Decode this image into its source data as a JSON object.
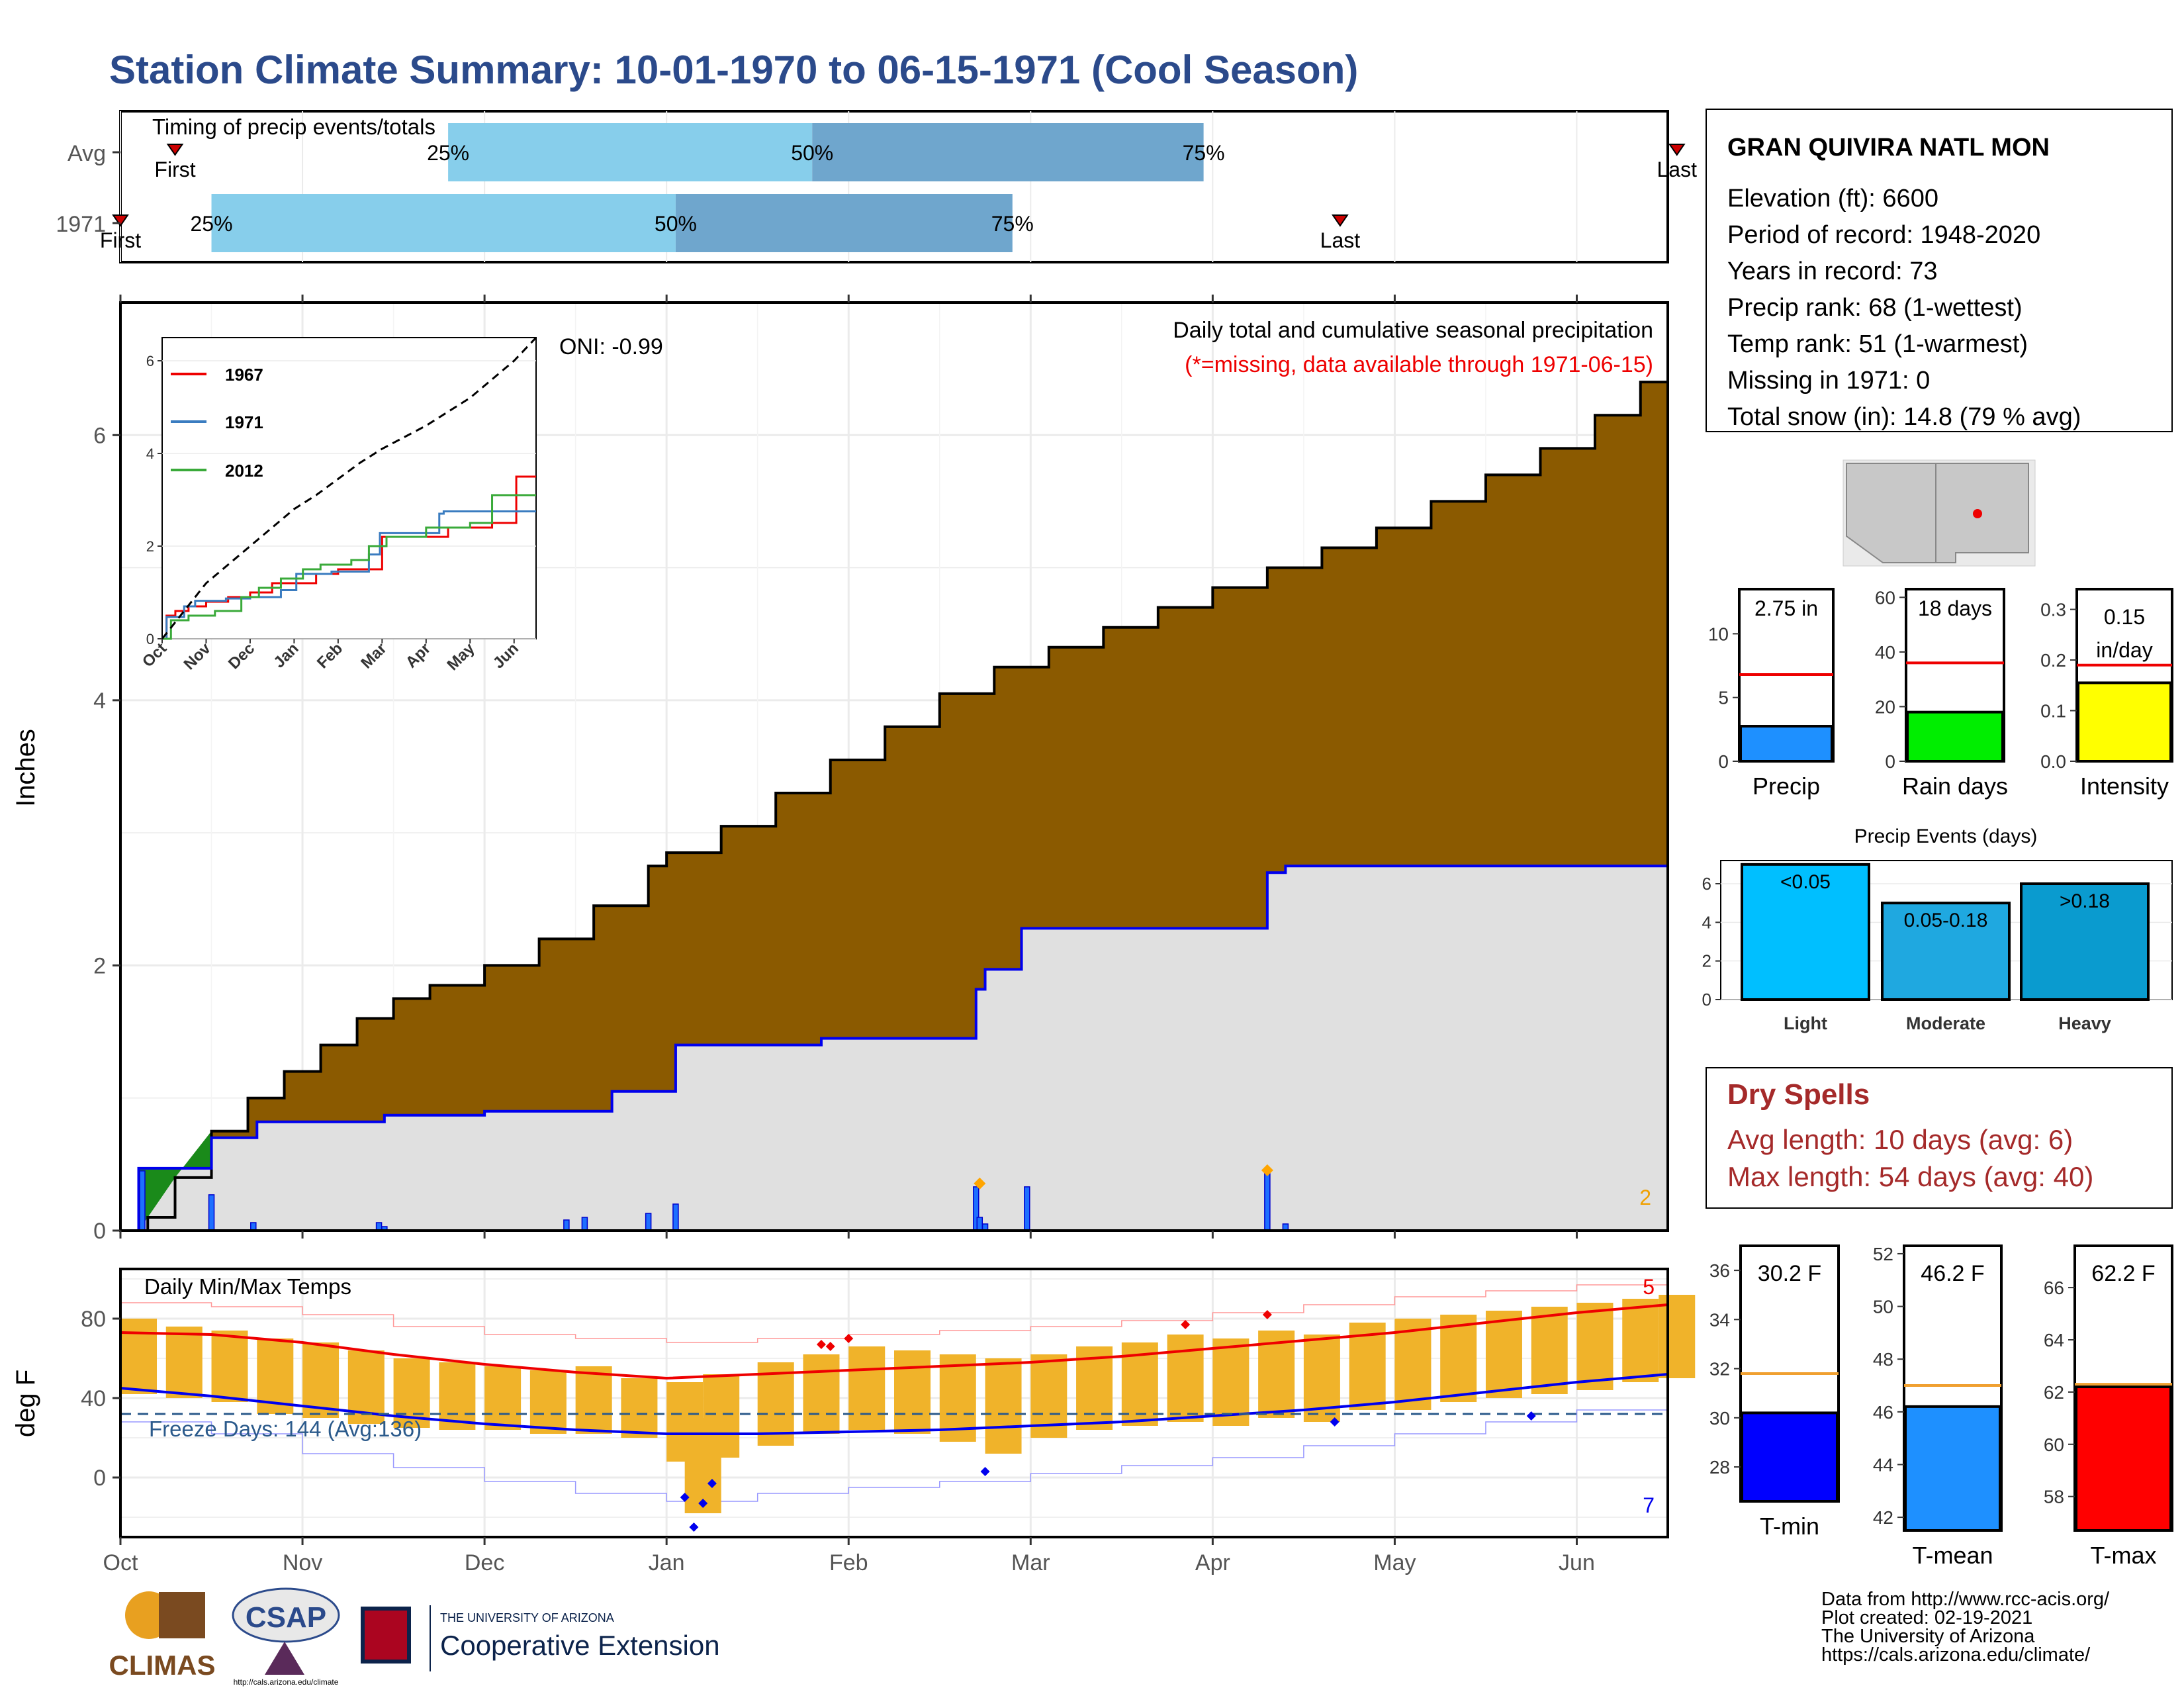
{
  "title": "Station Climate Summary: 10-01-1970 to 06-15-1971 (Cool Season)",
  "colors": {
    "title": "#2B4A8B",
    "precip_fill": "#8B5A00",
    "obs_line": "#0000EE",
    "obs_fill": "#E0E0E0",
    "early_fill": "#1A8A1A",
    "q_light": "#87CEEB",
    "q_dark": "#6FA6CD",
    "marker": "#CC0000",
    "bar_orange": "#F0B32A",
    "tmax_line": "#EE0000",
    "tmin_line": "#0000EE",
    "dry_spell_red": "#A52A2A"
  },
  "timing_panel": {
    "title": "Timing of precip events/totals",
    "rows": [
      {
        "label": "Avg",
        "first_mo": 0.3,
        "last_mo": 8.55,
        "q25": 1.8,
        "q50": 3.8,
        "q75": 5.95,
        "first_label": "First",
        "last_label": "Last"
      },
      {
        "label": "1971",
        "first_mo": 0.0,
        "last_mo": 6.7,
        "q25": 0.5,
        "q50": 3.05,
        "q75": 4.9,
        "first_label": "First",
        "last_label": "Last"
      }
    ],
    "pct_labels": [
      "25%",
      "50%",
      "75%"
    ]
  },
  "precip_panel": {
    "ylabel": "Inches",
    "annotation_title": "Daily total and cumulative seasonal precipitation",
    "annotation_missing": "(*=missing, data available through 1971-06-15)",
    "oni": "ONI: -0.99",
    "corner_count": "2",
    "yticks": [
      "0",
      "2",
      "4",
      "6"
    ],
    "ylim": [
      0,
      7
    ],
    "xlim_months": [
      0,
      8.5
    ]
  },
  "inset": {
    "yticks": [
      "0",
      "2",
      "4",
      "6"
    ],
    "xticks": [
      "Oct",
      "Nov",
      "Dec",
      "Jan",
      "Feb",
      "Mar",
      "Apr",
      "May",
      "Jun"
    ],
    "legend": [
      {
        "name": "1967",
        "color": "#EE0000"
      },
      {
        "name": "1971",
        "color": "#3A7CC0"
      },
      {
        "name": "2012",
        "color": "#3AAA3A"
      }
    ]
  },
  "temp_panel": {
    "ylabel": "deg F",
    "title": "Daily Min/Max Temps",
    "freeze_label": "Freeze Days: 144 (Avg:136)",
    "count_red": "5",
    "count_blue": "7",
    "yticks": [
      "0",
      "40",
      "80"
    ],
    "ylim": [
      -30,
      105
    ]
  },
  "x_months": [
    "Oct",
    "Nov",
    "Dec",
    "Jan",
    "Feb",
    "Mar",
    "Apr",
    "May",
    "Jun"
  ],
  "station": {
    "name": "GRAN QUIVIRA NATL MON",
    "lines": [
      "Elevation (ft): 6600",
      "Period of record: 1948-2020",
      "Years in record: 73",
      "Precip rank: 68 (1-wettest)",
      "Temp rank: 51 (1-warmest)",
      "Missing in 1971: 0",
      "Total snow (in): 14.8 (79 % avg)"
    ]
  },
  "mini_bars": [
    {
      "label": "Precip",
      "value_text": "2.75 in",
      "value": 2.75,
      "avg": 6.8,
      "ylim": [
        0,
        13.5
      ],
      "ticks": [
        "0",
        "5",
        "10"
      ],
      "tick_vals": [
        0,
        5,
        10
      ],
      "color": "#1E90FF"
    },
    {
      "label": "Rain days",
      "value_text": "18 days",
      "value": 18,
      "avg": 36,
      "ylim": [
        0,
        63
      ],
      "ticks": [
        "0",
        "20",
        "40",
        "60"
      ],
      "tick_vals": [
        0,
        20,
        40,
        60
      ],
      "color": "#00EE00"
    },
    {
      "label": "Intensity",
      "value_text": "0.15 in/day",
      "value": 0.155,
      "avg": 0.19,
      "ylim": [
        0,
        0.34
      ],
      "ticks": [
        "0.0",
        "0.1",
        "0.2",
        "0.3"
      ],
      "tick_vals": [
        0,
        0.1,
        0.2,
        0.3
      ],
      "color": "#FFFF00"
    }
  ],
  "precip_events": {
    "title": "Precip Events (days)",
    "yticks": [
      "0",
      "2",
      "4",
      "6"
    ],
    "ylim": [
      0,
      7.2
    ],
    "bars": [
      {
        "category": "Light",
        "label": "<0.05",
        "value": 7,
        "color": "#00BFFF"
      },
      {
        "category": "Moderate",
        "label": "0.05-0.18",
        "value": 5,
        "color": "#1FA8E0"
      },
      {
        "category": "Heavy",
        "label": ">0.18",
        "value": 6,
        "color": "#0A9BCF"
      }
    ]
  },
  "dry_spells": {
    "title": "Dry Spells",
    "avg": "Avg length: 10 days (avg: 6)",
    "max": "Max length: 54 days (avg: 40)"
  },
  "temp_bars": [
    {
      "label": "T-min",
      "value_text": "30.2 F",
      "value": 30.2,
      "avg": 31.8,
      "ylim": [
        26.6,
        37
      ],
      "ticks": [
        "28",
        "30",
        "32",
        "34",
        "36"
      ],
      "tick_vals": [
        28,
        30,
        32,
        34,
        36
      ],
      "color": "#0000FF"
    },
    {
      "label": "T-mean",
      "value_text": "46.2 F",
      "value": 46.2,
      "avg": 47.0,
      "ylim": [
        41.5,
        52.3
      ],
      "ticks": [
        "42",
        "44",
        "46",
        "48",
        "50",
        "52"
      ],
      "tick_vals": [
        42,
        44,
        46,
        48,
        50,
        52
      ],
      "color": "#1E90FF"
    },
    {
      "label": "T-max",
      "value_text": "62.2 F",
      "value": 62.2,
      "avg": 62.3,
      "ylim": [
        56.7,
        67.6
      ],
      "ticks": [
        "58",
        "60",
        "62",
        "64",
        "66"
      ],
      "tick_vals": [
        58,
        60,
        62,
        64,
        66
      ],
      "color": "#FF0000"
    }
  ],
  "logos": {
    "climas": "CLIMAS",
    "csap": "CSAP",
    "csap_url": "http://cals.arizona.edu/climate",
    "ua_small": "THE UNIVERSITY OF ARIZONA",
    "ua_big": "Cooperative Extension"
  },
  "footer": [
    "Data from http://www.rcc-acis.org/",
    "Plot created: 02-19-2021",
    "The University of Arizona",
    "https://cals.arizona.edu/climate/"
  ],
  "chart_data": {
    "type": "area",
    "title": "Station Climate Summary: 10-01-1970 to 06-15-1971 (Cool Season)",
    "ylabel": "Inches",
    "x_unit": "months since Oct 1",
    "ylim": [
      0,
      7
    ],
    "series": [
      {
        "name": "cumulative average precipitation",
        "x": [
          0,
          0.15,
          0.3,
          0.5,
          0.7,
          0.9,
          1.1,
          1.3,
          1.5,
          1.7,
          2.0,
          2.3,
          2.6,
          2.9,
          3.0,
          3.3,
          3.6,
          3.9,
          4.2,
          4.5,
          4.8,
          5.1,
          5.4,
          5.7,
          6.0,
          6.3,
          6.6,
          6.9,
          7.2,
          7.5,
          7.8,
          8.1,
          8.35,
          8.5
        ],
        "y": [
          0,
          0.1,
          0.4,
          0.75,
          1.0,
          1.2,
          1.4,
          1.6,
          1.75,
          1.85,
          2.0,
          2.2,
          2.45,
          2.75,
          2.85,
          3.05,
          3.3,
          3.55,
          3.8,
          4.05,
          4.25,
          4.4,
          4.55,
          4.7,
          4.85,
          5.0,
          5.15,
          5.3,
          5.5,
          5.7,
          5.9,
          6.15,
          6.4,
          6.48
        ]
      },
      {
        "name": "1971 cumulative observed precipitation",
        "x": [
          0,
          0.1,
          0.1,
          0.5,
          0.5,
          0.75,
          0.75,
          1.45,
          1.45,
          2.0,
          2.0,
          2.7,
          2.7,
          3.05,
          3.05,
          3.85,
          3.85,
          4.7,
          4.7,
          4.75,
          4.75,
          4.95,
          4.95,
          6.3,
          6.3,
          6.4,
          6.4,
          8.5
        ],
        "y": [
          0,
          0,
          0.47,
          0.47,
          0.7,
          0.7,
          0.82,
          0.82,
          0.87,
          0.87,
          0.9,
          0.9,
          1.05,
          1.05,
          1.4,
          1.4,
          1.45,
          1.45,
          1.82,
          1.82,
          1.97,
          1.97,
          2.28,
          2.28,
          2.7,
          2.7,
          2.75,
          2.75
        ]
      }
    ],
    "daily_precip": {
      "x": [
        0.12,
        0.5,
        0.73,
        1.42,
        1.45,
        2.45,
        2.55,
        2.9,
        3.05,
        4.7,
        4.72,
        4.75,
        4.98,
        6.3,
        6.4
      ],
      "y": [
        0.45,
        0.27,
        0.06,
        0.06,
        0.03,
        0.08,
        0.1,
        0.13,
        0.2,
        0.33,
        0.1,
        0.05,
        0.33,
        0.43,
        0.05
      ]
    },
    "inset": {
      "xlabel": "",
      "ylabel": "",
      "ylim": [
        0,
        6.5
      ],
      "series": [
        {
          "name": "1967",
          "x": [
            0,
            0.1,
            0.3,
            0.6,
            1.0,
            1.5,
            2.0,
            2.5,
            3.5,
            4.0,
            4.7,
            5.0,
            6.5,
            7.5,
            8.0,
            8.05,
            8.5
          ],
          "y": [
            0,
            0.5,
            0.6,
            0.7,
            0.8,
            0.9,
            1.0,
            1.2,
            1.4,
            1.5,
            1.5,
            2.2,
            2.4,
            2.5,
            2.5,
            3.5,
            3.5
          ]
        },
        {
          "name": "1971",
          "x": [
            0,
            0.1,
            0.5,
            0.75,
            1.45,
            2.0,
            2.7,
            3.05,
            3.85,
            4.7,
            4.95,
            6.3,
            6.4,
            8.5
          ],
          "y": [
            0,
            0.47,
            0.7,
            0.82,
            0.87,
            0.9,
            1.05,
            1.4,
            1.45,
            1.82,
            2.28,
            2.7,
            2.75,
            2.75
          ]
        },
        {
          "name": "2012",
          "x": [
            0,
            0.2,
            0.6,
            1.2,
            1.8,
            2.2,
            2.7,
            3.2,
            3.6,
            4.3,
            4.7,
            5.1,
            6.0,
            7.0,
            7.5,
            8.0,
            8.5
          ],
          "y": [
            0,
            0.4,
            0.5,
            0.6,
            0.9,
            1.1,
            1.3,
            1.5,
            1.6,
            1.7,
            2.0,
            2.2,
            2.4,
            2.5,
            3.1,
            3.1,
            3.1
          ]
        },
        {
          "name": "",
          "x": [
            0,
            0.5,
            1.0,
            1.5,
            2.0,
            2.5,
            3.0,
            3.5,
            4.0,
            4.5,
            5.0,
            5.5,
            6.0,
            6.5,
            7.0,
            7.5,
            8.0,
            8.5
          ],
          "y": [
            0,
            0.6,
            1.2,
            1.6,
            2.0,
            2.4,
            2.8,
            3.1,
            3.45,
            3.8,
            4.1,
            4.35,
            4.6,
            4.9,
            5.2,
            5.6,
            6.0,
            6.5
          ]
        }
      ]
    },
    "temperature": {
      "ylabel": "deg F",
      "avg_max": {
        "x": [
          0,
          0.5,
          1.0,
          1.5,
          2.0,
          2.5,
          3.0,
          3.5,
          4.0,
          4.5,
          5.0,
          5.5,
          6.0,
          6.5,
          7.0,
          7.5,
          8.0,
          8.5
        ],
        "y": [
          73,
          72,
          68,
          62,
          57,
          53,
          50,
          52,
          54,
          56,
          58,
          61,
          65,
          69,
          73,
          78,
          83,
          87
        ]
      },
      "avg_min": {
        "x": [
          0,
          0.5,
          1.0,
          1.5,
          2.0,
          2.5,
          3.0,
          3.5,
          4.0,
          4.5,
          5.0,
          5.5,
          6.0,
          6.5,
          7.0,
          7.5,
          8.0,
          8.5
        ],
        "y": [
          45,
          41,
          36,
          31,
          27,
          24,
          22,
          22,
          23,
          24,
          26,
          28,
          31,
          34,
          38,
          43,
          48,
          52
        ]
      },
      "record_max": {
        "x": [
          0,
          0.5,
          1.0,
          1.5,
          2.0,
          2.5,
          3.0,
          3.5,
          4.0,
          4.5,
          5.0,
          5.5,
          6.0,
          6.5,
          7.0,
          7.5,
          8.0,
          8.5
        ],
        "y": [
          88,
          86,
          82,
          76,
          72,
          70,
          68,
          70,
          72,
          74,
          76,
          79,
          83,
          87,
          91,
          94,
          97,
          99
        ]
      },
      "record_min": {
        "x": [
          0,
          0.5,
          1.0,
          1.5,
          2.0,
          2.5,
          3.0,
          3.5,
          4.0,
          4.5,
          5.0,
          5.5,
          6.0,
          6.5,
          7.0,
          7.5,
          8.0,
          8.5
        ],
        "y": [
          28,
          22,
          12,
          5,
          -2,
          -8,
          -12,
          -8,
          -5,
          -2,
          2,
          6,
          10,
          16,
          22,
          28,
          34,
          40
        ]
      },
      "freeze_line": 32,
      "daily_bars": {
        "x": [
          0.0,
          0.25,
          0.5,
          0.75,
          1.0,
          1.25,
          1.5,
          1.75,
          2.0,
          2.25,
          2.5,
          2.75,
          3.0,
          3.1,
          3.2,
          3.5,
          3.75,
          4.0,
          4.25,
          4.5,
          4.75,
          5.0,
          5.25,
          5.5,
          5.75,
          6.0,
          6.25,
          6.5,
          6.75,
          7.0,
          7.25,
          7.5,
          7.75,
          8.0,
          8.25,
          8.45
        ],
        "low": [
          42,
          40,
          38,
          32,
          30,
          27,
          25,
          24,
          24,
          22,
          22,
          20,
          8,
          -18,
          10,
          16,
          22,
          24,
          22,
          18,
          12,
          20,
          24,
          26,
          28,
          26,
          30,
          28,
          34,
          34,
          38,
          40,
          42,
          44,
          48,
          50
        ],
        "high": [
          80,
          76,
          74,
          70,
          68,
          64,
          60,
          58,
          56,
          54,
          56,
          50,
          48,
          30,
          52,
          58,
          62,
          66,
          64,
          62,
          60,
          62,
          66,
          68,
          72,
          70,
          74,
          72,
          78,
          80,
          82,
          84,
          86,
          88,
          90,
          92
        ]
      },
      "record_high_markers": {
        "x": [
          3.85,
          3.9,
          4.0,
          5.85,
          6.3
        ],
        "y": [
          67,
          66,
          70,
          77,
          82
        ]
      },
      "record_low_markers": {
        "x": [
          3.1,
          3.15,
          3.2,
          3.25,
          4.75,
          6.67,
          7.75
        ],
        "y": [
          -10,
          -25,
          -13,
          -3,
          3,
          28,
          31
        ]
      }
    }
  }
}
